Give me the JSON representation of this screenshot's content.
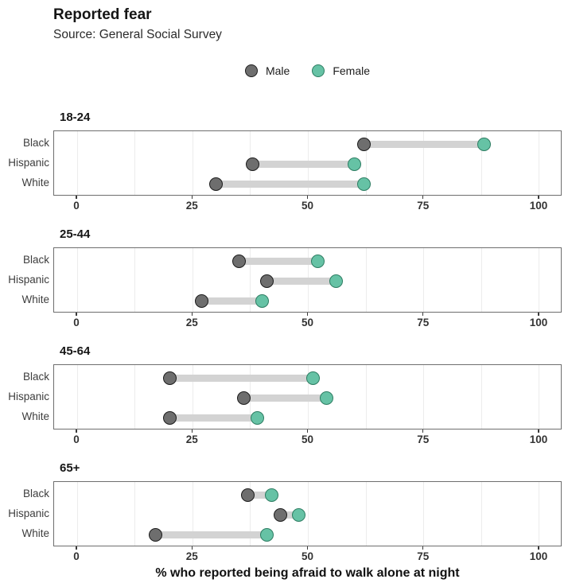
{
  "chart_data": {
    "type": "scatter",
    "variant": "dumbbell",
    "title": "Reported fear",
    "subtitle": "Source: General Social Survey",
    "xlabel": "% who reported being afraid to walk alone at night",
    "xlim": [
      -5,
      105
    ],
    "xticks": [
      0,
      25,
      50,
      75,
      100
    ],
    "minor_grid_step": 12.5,
    "grid": true,
    "legend_position": "top-center",
    "categories": [
      "Black",
      "Hispanic",
      "White"
    ],
    "series_meta": [
      {
        "name": "Male",
        "fill": "#6e6e6e",
        "stroke": "#1c1c1c"
      },
      {
        "name": "Female",
        "fill": "#66c2a5",
        "stroke": "#2d7d62"
      }
    ],
    "connector_color": "#d3d3d3",
    "facets": [
      {
        "label": "18-24",
        "series": [
          {
            "name": "Male",
            "values": [
              62,
              38,
              30
            ]
          },
          {
            "name": "Female",
            "values": [
              88,
              60,
              62
            ]
          }
        ]
      },
      {
        "label": "25-44",
        "series": [
          {
            "name": "Male",
            "values": [
              35,
              41,
              27
            ]
          },
          {
            "name": "Female",
            "values": [
              52,
              56,
              40
            ]
          }
        ]
      },
      {
        "label": "45-64",
        "series": [
          {
            "name": "Male",
            "values": [
              20,
              36,
              20
            ]
          },
          {
            "name": "Female",
            "values": [
              51,
              54,
              39
            ]
          }
        ]
      },
      {
        "label": "65+",
        "series": [
          {
            "name": "Male",
            "values": [
              37,
              44,
              17
            ]
          },
          {
            "name": "Female",
            "values": [
              42,
              48,
              41
            ]
          }
        ]
      }
    ]
  }
}
